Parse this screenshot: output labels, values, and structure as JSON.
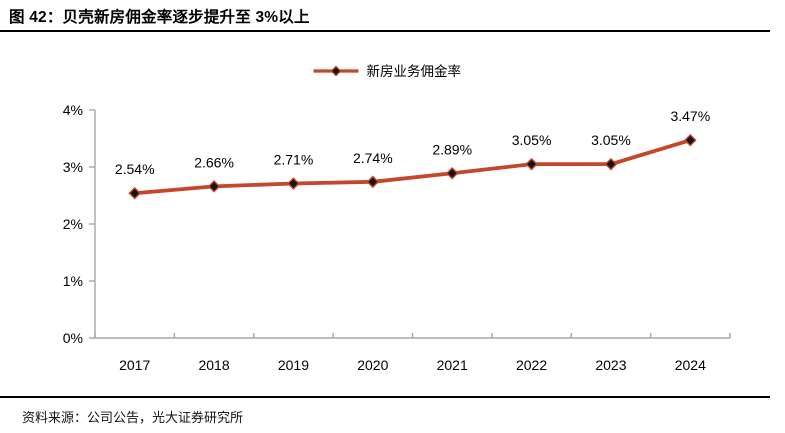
{
  "header": {
    "title": "图 42：贝壳新房佣金率逐步提升至 3%以上"
  },
  "footer": {
    "source": "资料来源：公司公告，光大证券研究所"
  },
  "colors": {
    "line": "#C5462B",
    "marker": "#141414",
    "axis": "#A6A6A6",
    "text": "#000000",
    "rule": "#000000"
  },
  "chart_data": {
    "type": "line",
    "title": "图 42：贝壳新房佣金率逐步提升至 3%以上",
    "categories": [
      "2017",
      "2018",
      "2019",
      "2020",
      "2021",
      "2022",
      "2023",
      "2024"
    ],
    "series": [
      {
        "name": "新房业务佣金率",
        "values": [
          2.54,
          2.66,
          2.71,
          2.74,
          2.89,
          3.05,
          3.05,
          3.47
        ],
        "point_labels": [
          "2.54%",
          "2.66%",
          "2.71%",
          "2.74%",
          "2.89%",
          "3.05%",
          "3.05%",
          "3.47%"
        ]
      }
    ],
    "xlabel": "",
    "ylabel": "",
    "y_ticks": [
      "0%",
      "1%",
      "2%",
      "3%",
      "4%"
    ],
    "ylim": [
      0,
      4
    ],
    "grid": false,
    "marker": "diamond",
    "legend": {
      "label": "新房业务佣金率",
      "position": "top-center"
    }
  }
}
